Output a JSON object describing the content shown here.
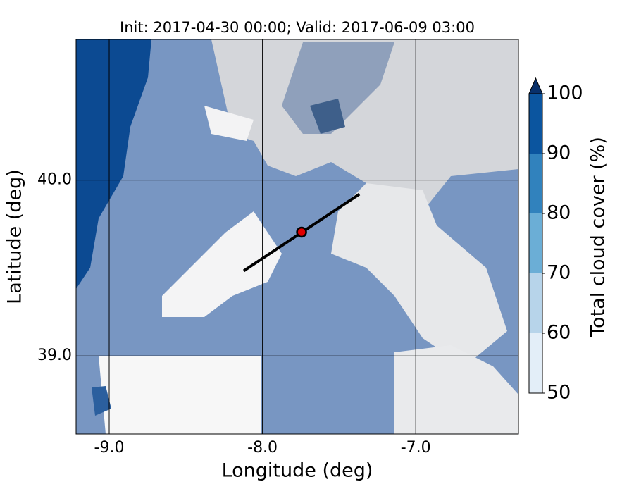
{
  "chart_data": {
    "type": "map",
    "title": "Init: 2017-04-30 00:00; Valid: 2017-06-09 03:00",
    "xlabel": "Longitude (deg)",
    "ylabel": "Latitude (deg)",
    "xlim": [
      -9.216,
      -6.33
    ],
    "ylim": [
      38.556,
      40.8
    ],
    "xticks": [
      {
        "value": -9,
        "label": "-9.0"
      },
      {
        "value": -8,
        "label": "-8.0"
      },
      {
        "value": -7,
        "label": "-7.0"
      }
    ],
    "yticks": [
      {
        "value": 39,
        "label": "39.0"
      },
      {
        "value": 40,
        "label": "40.0"
      }
    ],
    "grid": true,
    "transect": {
      "x": [
        -8.122,
        -7.368
      ],
      "y": [
        39.484,
        39.92
      ],
      "color": "#000000"
    },
    "point": {
      "x": -7.745,
      "y": 39.704,
      "color": "#e00000"
    },
    "colorbar": {
      "label": "Total cloud cover (%)",
      "ticks": [
        50,
        60,
        70,
        80,
        90,
        100
      ],
      "colors": [
        "#e3eef8",
        "#b7d4ea",
        "#6baed6",
        "#3182bd",
        "#0b559f"
      ],
      "extend_color": "#08306b"
    }
  }
}
